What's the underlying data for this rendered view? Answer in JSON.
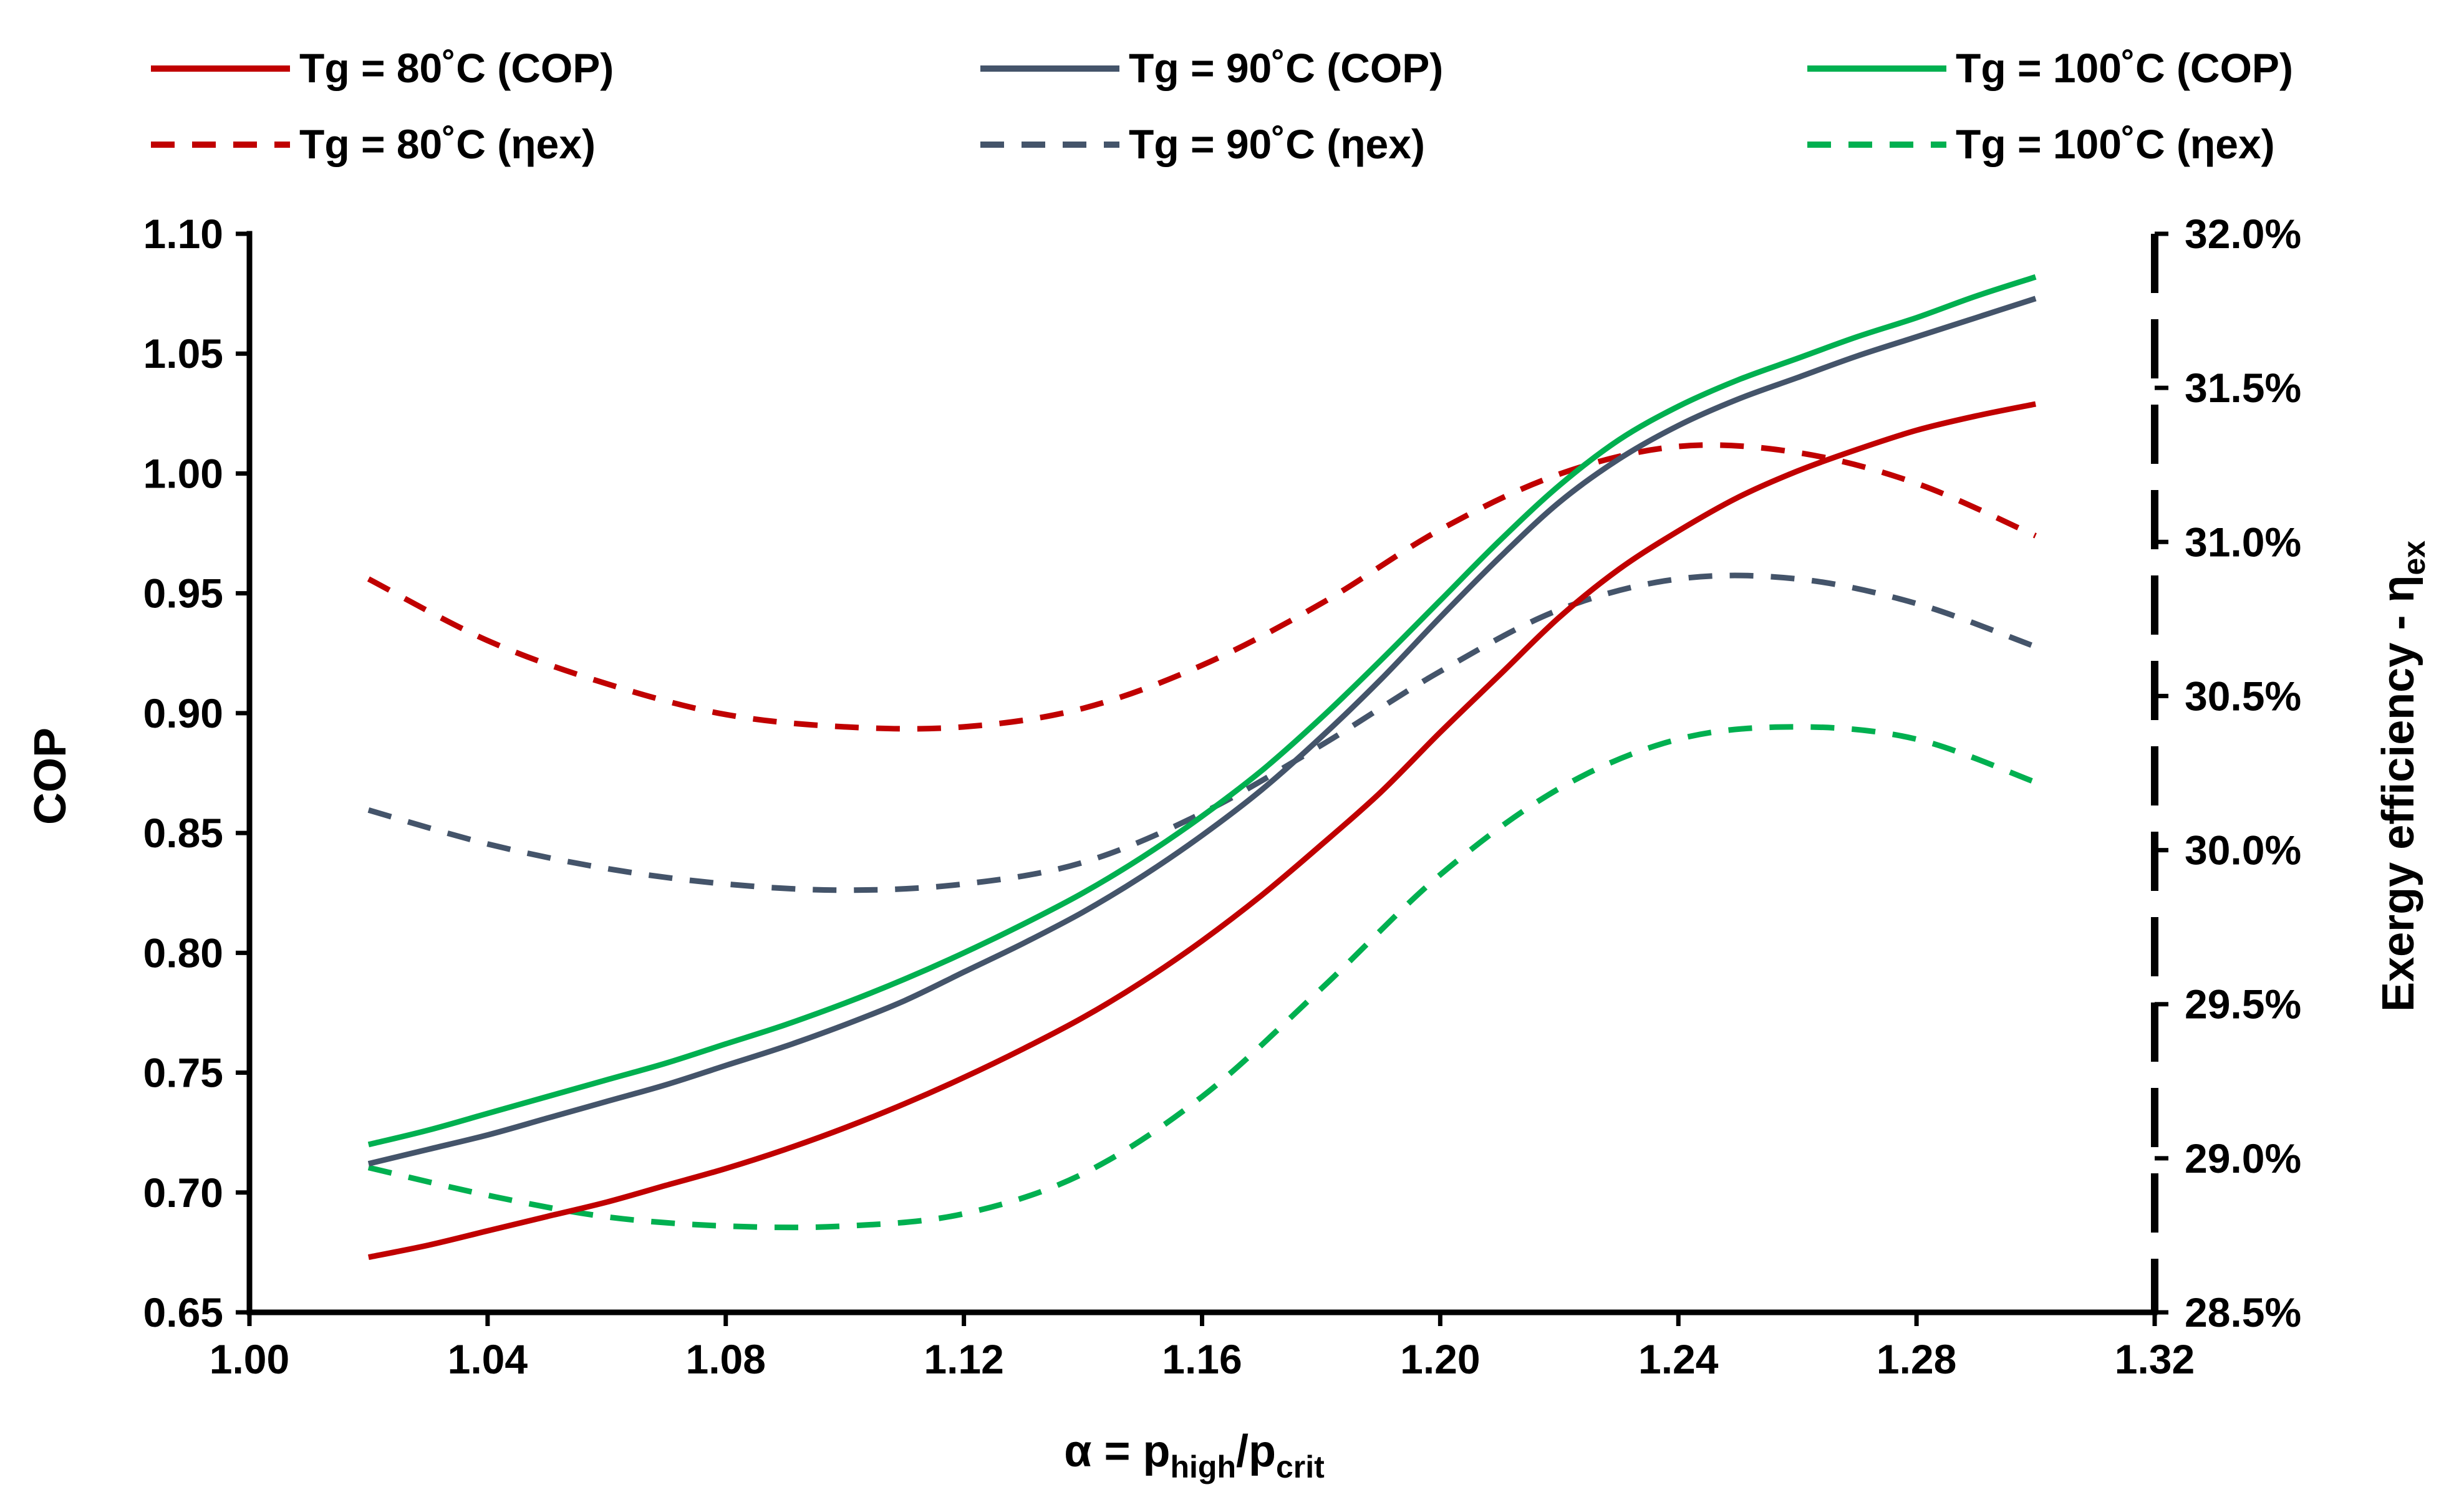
{
  "chart_data": {
    "type": "line",
    "title": "",
    "xlabel": {
      "main": "α = p",
      "sub1": "high",
      "mid": "/p",
      "sub2": "crit"
    },
    "ylabel": "COP",
    "y2label": {
      "main": "Exergy efficiency - η",
      "sub": "ex"
    },
    "xlim": [
      1.0,
      1.32
    ],
    "ylim": [
      0.65,
      1.1
    ],
    "y2lim": [
      0.285,
      0.32
    ],
    "x_ticks": [
      "1.00",
      "1.04",
      "1.08",
      "1.12",
      "1.16",
      "1.20",
      "1.24",
      "1.28",
      "1.32"
    ],
    "y_ticks": [
      "0.65",
      "0.70",
      "0.75",
      "0.80",
      "0.85",
      "0.90",
      "0.95",
      "1.00",
      "1.05",
      "1.10"
    ],
    "y2_ticks": [
      "28.5%",
      "29.0%",
      "29.5%",
      "30.0%",
      "30.5%",
      "31.0%",
      "31.5%",
      "32.0%"
    ],
    "grid": false,
    "legend_position": "top",
    "series": [
      {
        "name": "Tg =  80˚C (COP)",
        "color": "#C00000",
        "dash": "solid",
        "axis": "left",
        "x": [
          1.02,
          1.03,
          1.04,
          1.05,
          1.06,
          1.07,
          1.08,
          1.09,
          1.1,
          1.11,
          1.12,
          1.13,
          1.14,
          1.15,
          1.16,
          1.17,
          1.18,
          1.19,
          1.2,
          1.21,
          1.22,
          1.23,
          1.24,
          1.25,
          1.26,
          1.27,
          1.28,
          1.29,
          1.3
        ],
        "y": [
          0.673,
          0.678,
          0.684,
          0.69,
          0.696,
          0.703,
          0.71,
          0.718,
          0.727,
          0.737,
          0.748,
          0.76,
          0.773,
          0.788,
          0.805,
          0.824,
          0.845,
          0.867,
          0.892,
          0.916,
          0.94,
          0.96,
          0.976,
          0.99,
          1.001,
          1.01,
          1.018,
          1.024,
          1.029
        ]
      },
      {
        "name": "Tg =  90˚C (COP)",
        "color": "#44546A",
        "dash": "solid",
        "axis": "left",
        "x": [
          1.02,
          1.03,
          1.04,
          1.05,
          1.06,
          1.07,
          1.08,
          1.09,
          1.1,
          1.11,
          1.12,
          1.13,
          1.14,
          1.15,
          1.16,
          1.17,
          1.18,
          1.19,
          1.2,
          1.21,
          1.22,
          1.23,
          1.24,
          1.25,
          1.26,
          1.27,
          1.28,
          1.29,
          1.3
        ],
        "y": [
          0.712,
          0.718,
          0.724,
          0.731,
          0.738,
          0.745,
          0.753,
          0.761,
          0.77,
          0.78,
          0.792,
          0.804,
          0.817,
          0.832,
          0.849,
          0.868,
          0.89,
          0.914,
          0.94,
          0.965,
          0.988,
          1.006,
          1.02,
          1.031,
          1.04,
          1.049,
          1.057,
          1.065,
          1.073
        ]
      },
      {
        "name": "Tg = 100˚C (COP)",
        "color": "#00B050",
        "dash": "solid",
        "axis": "left",
        "x": [
          1.02,
          1.03,
          1.04,
          1.05,
          1.06,
          1.07,
          1.08,
          1.09,
          1.1,
          1.11,
          1.12,
          1.13,
          1.14,
          1.15,
          1.16,
          1.17,
          1.18,
          1.19,
          1.2,
          1.21,
          1.22,
          1.23,
          1.24,
          1.25,
          1.26,
          1.27,
          1.28,
          1.29,
          1.3
        ],
        "y": [
          0.72,
          0.726,
          0.733,
          0.74,
          0.747,
          0.754,
          0.762,
          0.77,
          0.779,
          0.789,
          0.8,
          0.812,
          0.825,
          0.84,
          0.857,
          0.876,
          0.898,
          0.922,
          0.947,
          0.972,
          0.995,
          1.014,
          1.028,
          1.039,
          1.048,
          1.057,
          1.065,
          1.074,
          1.082
        ]
      },
      {
        "name": "Tg =  80˚C (ηex)",
        "color": "#C00000",
        "dash": "dashed",
        "axis": "right",
        "x": [
          1.02,
          1.04,
          1.06,
          1.08,
          1.1,
          1.12,
          1.14,
          1.16,
          1.18,
          1.2,
          1.22,
          1.24,
          1.26,
          1.28,
          1.3
        ],
        "y": [
          0.3088,
          0.3068,
          0.3054,
          0.3044,
          0.304,
          0.304,
          0.3046,
          0.306,
          0.308,
          0.3104,
          0.3122,
          0.3131,
          0.3129,
          0.3119,
          0.3102
        ]
      },
      {
        "name": "Tg =  90˚C (ηex)",
        "color": "#44546A",
        "dash": "dashed",
        "axis": "right",
        "x": [
          1.02,
          1.04,
          1.06,
          1.08,
          1.1,
          1.12,
          1.14,
          1.16,
          1.18,
          1.2,
          1.22,
          1.24,
          1.26,
          1.28,
          1.3
        ],
        "y": [
          0.3013,
          0.3002,
          0.2994,
          0.2989,
          0.2987,
          0.2989,
          0.2996,
          0.3012,
          0.3034,
          0.3058,
          0.3078,
          0.3088,
          0.3088,
          0.308,
          0.3066
        ]
      },
      {
        "name": "Tg = 100˚C (ηex)",
        "color": "#00B050",
        "dash": "dashed",
        "axis": "right",
        "x": [
          1.02,
          1.04,
          1.06,
          1.08,
          1.1,
          1.12,
          1.14,
          1.16,
          1.18,
          1.2,
          1.22,
          1.24,
          1.26,
          1.28,
          1.3
        ],
        "y": [
          0.2897,
          0.2888,
          0.2881,
          0.2878,
          0.2878,
          0.2882,
          0.2895,
          0.292,
          0.2955,
          0.2992,
          0.302,
          0.3036,
          0.304,
          0.3036,
          0.3022
        ]
      }
    ]
  }
}
